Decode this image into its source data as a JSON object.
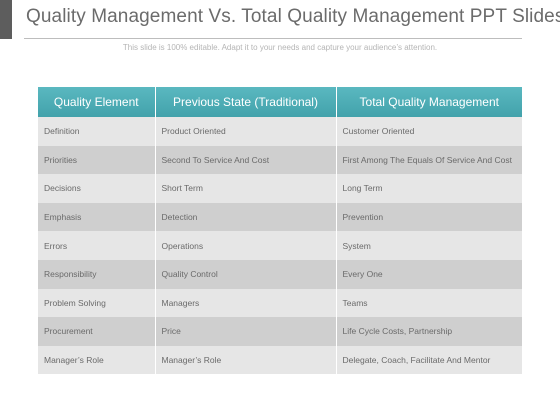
{
  "slide": {
    "title": "Quality Management Vs. Total Quality Management PPT Slides",
    "subtitle": "This slide is 100% editable. Adapt it to your needs and capture your audience’s attention."
  },
  "table": {
    "headers": [
      "Quality Element",
      "Previous State (Traditional)",
      "Total Quality Management"
    ],
    "rows": [
      [
        "Definition",
        "Product Oriented",
        "Customer Oriented"
      ],
      [
        "Priorities",
        "Second To Service And Cost",
        "First Among The Equals Of Service And Cost"
      ],
      [
        "Decisions",
        "Short Term",
        "Long Term"
      ],
      [
        "Emphasis",
        "Detection",
        "Prevention"
      ],
      [
        "Errors",
        "Operations",
        "System"
      ],
      [
        "Responsibility",
        "Quality Control",
        "Every One"
      ],
      [
        "Problem Solving",
        "Managers",
        "Teams"
      ],
      [
        "Procurement",
        "Price",
        "Life Cycle Costs, Partnership"
      ],
      [
        "Manager’s Role",
        "Manager’s Role",
        "Delegate, Coach, Facilitate And Mentor"
      ]
    ]
  },
  "colors": {
    "header_teal": "#4aabb4",
    "row_light": "#e6e6e6",
    "row_dark": "#cfcfcf",
    "title_gray": "#6b6b6b"
  }
}
